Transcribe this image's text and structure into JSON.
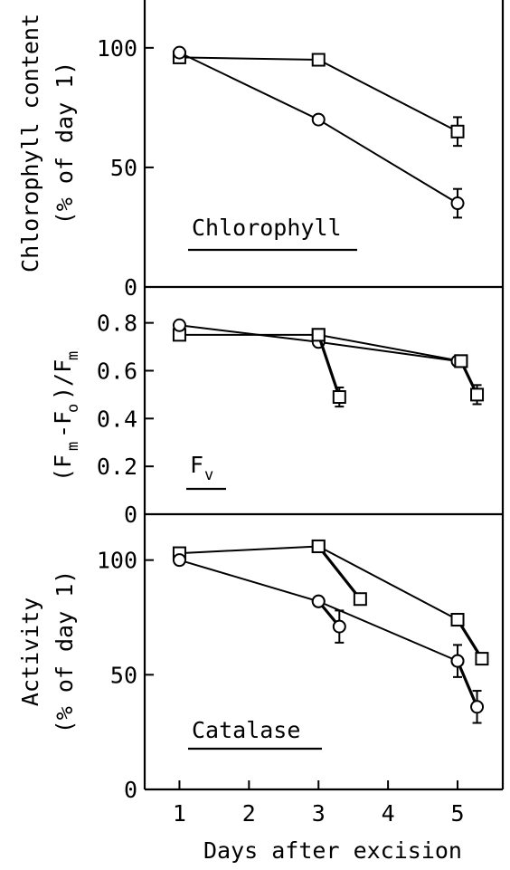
{
  "chart_data": [
    {
      "type": "line",
      "panel": "top",
      "label": "Chlorophyll",
      "ylabel_line1": "Chlorophyll content",
      "ylabel_line2": "(% of day 1)",
      "ylim": [
        0,
        120
      ],
      "yticks": [
        0,
        50,
        100
      ],
      "ytick_labels": [
        "0",
        "50",
        "100"
      ],
      "series": [
        {
          "marker": "square",
          "x": [
            1,
            3,
            5
          ],
          "y": [
            96,
            95,
            65
          ],
          "err": [
            0,
            0,
            6
          ],
          "style": "thin"
        },
        {
          "marker": "circle",
          "x": [
            1,
            3,
            5
          ],
          "y": [
            98,
            70,
            35
          ],
          "err": [
            0,
            0,
            6
          ],
          "style": "thin"
        }
      ]
    },
    {
      "type": "line",
      "panel": "middle",
      "label_main": "F",
      "label_sub": "v",
      "ylabel": "(Fm-Fo)/Fm",
      "ylim": [
        0,
        0.95
      ],
      "yticks": [
        0,
        0.2,
        0.4,
        0.6,
        0.8
      ],
      "ytick_labels": [
        "0",
        "0.2",
        "0.4",
        "0.6",
        "0.8"
      ],
      "series": [
        {
          "marker": "square",
          "x": [
            1,
            3,
            5.05
          ],
          "y": [
            0.75,
            0.75,
            0.64
          ],
          "err": [
            0,
            0,
            0
          ],
          "style": "thin"
        },
        {
          "marker": "circle",
          "x": [
            1,
            3,
            5
          ],
          "y": [
            0.79,
            0.72,
            0.64
          ],
          "err": [
            0,
            0,
            0
          ],
          "style": "thin"
        },
        {
          "marker": "square",
          "x": [
            3,
            3.3
          ],
          "y": [
            0.75,
            0.49
          ],
          "err": [
            0,
            0.04
          ],
          "style": "bold"
        },
        {
          "marker": "square",
          "x": [
            5.05,
            5.28
          ],
          "y": [
            0.64,
            0.5
          ],
          "err": [
            0,
            0.04
          ],
          "style": "bold"
        }
      ]
    },
    {
      "type": "line",
      "panel": "bottom",
      "label": "Catalase",
      "ylabel_line1": "Activity",
      "ylabel_line2": "(% of day 1)",
      "xlabel": "Days after excision",
      "xlim": [
        0.5,
        5.65
      ],
      "xticks": [
        1,
        2,
        3,
        4,
        5
      ],
      "xtick_labels": [
        "1",
        "2",
        "3",
        "4",
        "5"
      ],
      "ylim": [
        0,
        120
      ],
      "yticks": [
        0,
        50,
        100
      ],
      "ytick_labels": [
        "0",
        "50",
        "100"
      ],
      "series": [
        {
          "marker": "square",
          "x": [
            1,
            3,
            5
          ],
          "y": [
            103,
            106,
            74
          ],
          "err": [
            0,
            0,
            0
          ],
          "style": "thin"
        },
        {
          "marker": "circle",
          "x": [
            1,
            3,
            5
          ],
          "y": [
            100,
            82,
            56
          ],
          "err": [
            0,
            0,
            7
          ],
          "style": "thin"
        },
        {
          "marker": "square",
          "x": [
            3,
            3.6
          ],
          "y": [
            106,
            83
          ],
          "err": [
            0,
            0
          ],
          "style": "bold"
        },
        {
          "marker": "circle",
          "x": [
            3,
            3.3
          ],
          "y": [
            82,
            71
          ],
          "err": [
            0,
            7
          ],
          "style": "bold"
        },
        {
          "marker": "square",
          "x": [
            5,
            5.35
          ],
          "y": [
            74,
            57
          ],
          "err": [
            0,
            0
          ],
          "style": "bold"
        },
        {
          "marker": "circle",
          "x": [
            5,
            5.28
          ],
          "y": [
            56,
            36
          ],
          "err": [
            0,
            7
          ],
          "style": "bold"
        }
      ]
    }
  ]
}
